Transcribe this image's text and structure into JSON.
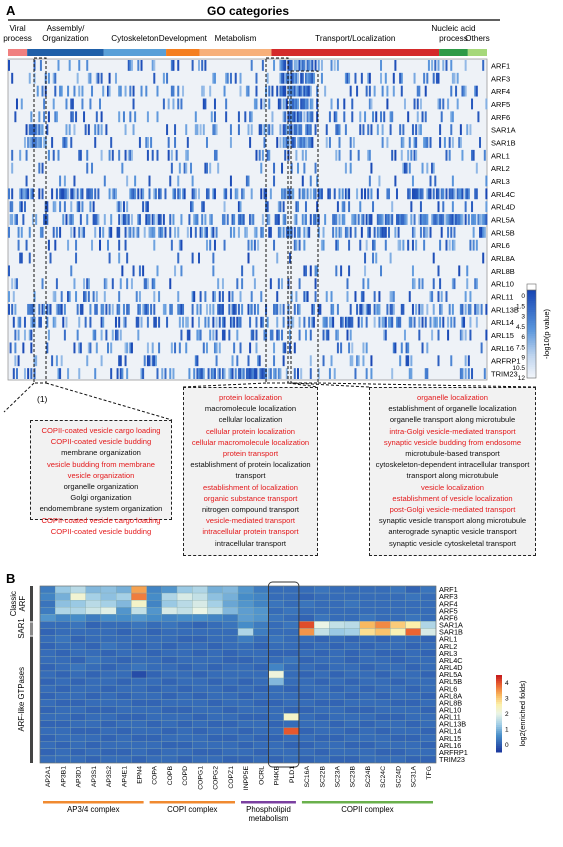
{
  "panelA": {
    "letter": "A",
    "title": "GO categories",
    "categories": [
      {
        "label": "Viral\nprocess",
        "color": "#f08080",
        "start": 0,
        "end": 4
      },
      {
        "label": "Assembly/\nOrganization",
        "color": "#1f5fa8",
        "start": 4,
        "end": 20
      },
      {
        "label": "Cytoskeleton",
        "color": "#5aa0d8",
        "start": 20,
        "end": 33
      },
      {
        "label": "Development",
        "color": "#f57f20",
        "start": 33,
        "end": 40
      },
      {
        "label": "Metabolism",
        "color": "#f7b07a",
        "start": 40,
        "end": 55
      },
      {
        "label": "Transport/Localization",
        "color": "#d42a2a",
        "start": 55,
        "end": 90
      },
      {
        "label": "Nucleic acid\nprocess",
        "color": "#2e9a46",
        "start": 90,
        "end": 96
      },
      {
        "label": "Others",
        "color": "#a6d87a",
        "start": 96,
        "end": 100
      }
    ],
    "rows": [
      "ARF1",
      "ARF3",
      "ARF4",
      "ARF5",
      "ARF6",
      "SAR1A",
      "SAR1B",
      "ARL1",
      "ARL2",
      "ARL3",
      "ARL4C",
      "ARL4D",
      "ARL5A",
      "ARL5B",
      "ARL6",
      "ARL8A",
      "ARL8B",
      "ARL10",
      "ARL11",
      "ARL13B",
      "ARL14",
      "ARL15",
      "ARL16",
      "ARFRP1",
      "TRIM23"
    ],
    "colorbar": {
      "label": "-log10(p value)",
      "ticks": [
        "0",
        "1.5",
        "3",
        "4.5",
        "6",
        "7.5",
        "9",
        "10.5",
        "12"
      ]
    },
    "boxes": [
      {
        "number": "(1)",
        "terms": [
          {
            "text": "COPII-coated vesicle cargo loading",
            "color": "red"
          },
          {
            "text": "COPII-coated vesicle budding",
            "color": "red"
          },
          {
            "text": "membrane organization",
            "color": "black"
          },
          {
            "text": "vesicle budding from membrane",
            "color": "red"
          },
          {
            "text": "vesicle organization",
            "color": "red"
          },
          {
            "text": "organelle organization",
            "color": "black"
          },
          {
            "text": "Golgi organization",
            "color": "black"
          },
          {
            "text": "endomembrane system organization",
            "color": "black"
          },
          {
            "text": "COPII-coated vesicle cargo loading",
            "color": "red"
          },
          {
            "text": "COPII-coated vesicle budding",
            "color": "red"
          }
        ]
      },
      {
        "number": "(2)",
        "terms": [
          {
            "text": "protein localization",
            "color": "red"
          },
          {
            "text": "macromolecule localization",
            "color": "black"
          },
          {
            "text": "cellular localization",
            "color": "black"
          },
          {
            "text": "cellular protein localization",
            "color": "red"
          },
          {
            "text": "cellular macromolecule localization",
            "color": "red"
          },
          {
            "text": "protein transport",
            "color": "red"
          },
          {
            "text": "establishment of protein localization",
            "color": "black"
          },
          {
            "text": "transport",
            "color": "black"
          },
          {
            "text": "establishment of localization",
            "color": "red"
          },
          {
            "text": "organic substance transport",
            "color": "red"
          },
          {
            "text": "nitrogen compound transport",
            "color": "black"
          },
          {
            "text": "vesicle-mediated transport",
            "color": "red"
          },
          {
            "text": "intracellular protein transport",
            "color": "red"
          },
          {
            "text": "intracellular transport",
            "color": "black"
          }
        ]
      },
      {
        "number": "(3)",
        "terms": [
          {
            "text": "organelle localization",
            "color": "red"
          },
          {
            "text": "establishment of organelle localization",
            "color": "black"
          },
          {
            "text": "organelle transport along microtubule",
            "color": "black"
          },
          {
            "text": "intra-Golgi vesicle-mediated transport",
            "color": "red"
          },
          {
            "text": "synaptic vesicle budding from endosome",
            "color": "red"
          },
          {
            "text": "microtubule-based transport",
            "color": "black"
          },
          {
            "text": "cytoskeleton-dependent intracellular transport",
            "color": "black"
          },
          {
            "text": "transport along microtubule",
            "color": "black"
          },
          {
            "text": "vesicle localization",
            "color": "red"
          },
          {
            "text": "establishment of vesicle localization",
            "color": "red"
          },
          {
            "text": "post-Golgi vesicle-mediated transport",
            "color": "red"
          },
          {
            "text": "synaptic vesicle transport along microtubule",
            "color": "black"
          },
          {
            "text": "anterograde synaptic vesicle transport",
            "color": "black"
          },
          {
            "text": "synaptic vesicle cytoskeletal transport",
            "color": "black"
          }
        ]
      }
    ]
  },
  "panelB": {
    "letter": "B",
    "group_labels": {
      "classic": "Classic\nARF",
      "sar1": "SAR1",
      "arl": "ARF-like  GTPases"
    },
    "colorbar": {
      "label": "log2(enriched folds)",
      "ticks": [
        "0",
        "1",
        "2",
        "3",
        "4"
      ]
    },
    "complexes": [
      {
        "label": "AP3/4 complex",
        "color": "#f08a30",
        "start": 0,
        "end": 6
      },
      {
        "label": "COPI complex",
        "color": "#f08a30",
        "start": 6,
        "end": 13
      },
      {
        "label": "Phospholipid\nmetabolism",
        "color": "#7a3fa0",
        "start": 13,
        "end": 15
      },
      {
        "label": "COPII complex",
        "color": "#6ab04c",
        "start": 15,
        "end": 25
      }
    ]
  },
  "chart_data": [
    {
      "type": "heatmap",
      "title": "GO categories",
      "y": [
        "ARF1",
        "ARF3",
        "ARF4",
        "ARF5",
        "ARF6",
        "SAR1A",
        "SAR1B",
        "ARL1",
        "ARL2",
        "ARL3",
        "ARL4C",
        "ARL4D",
        "ARL5A",
        "ARL5B",
        "ARL6",
        "ARL8A",
        "ARL8B",
        "ARL10",
        "ARL11",
        "ARL13B",
        "ARL14",
        "ARL15",
        "ARL16",
        "ARFRP1",
        "TRIM23"
      ],
      "x_categories": [
        "Viral process",
        "Assembly/Organization",
        "Cytoskeleton",
        "Development",
        "Metabolism",
        "Transport/Localization",
        "Nucleic acid process",
        "Others"
      ],
      "colorbar_label": "-log10(p value)",
      "zlim": [
        0,
        12
      ]
    },
    {
      "type": "heatmap",
      "x": [
        "AP2A1",
        "AP3B1",
        "AP3D1",
        "AP3S1",
        "AP3S2",
        "AP4E1",
        "EPN4",
        "COPA",
        "COPB",
        "COPD",
        "COPG1",
        "COPG2",
        "COPZ1",
        "INPP5E",
        "OCRL",
        "PI4KB",
        "PLD1",
        "SC16A",
        "SC22B",
        "SC23A",
        "SC23B",
        "SC24B",
        "SC24C",
        "SC24D",
        "SC31A",
        "TFG"
      ],
      "y": [
        "ARF1",
        "ARF3",
        "ARF4",
        "ARF5",
        "ARF6",
        "SAR1A",
        "SAR1B",
        "ARL1",
        "ARL2",
        "ARL3",
        "ARL4C",
        "ARL4D",
        "ARL5A",
        "ARL5B",
        "ARL6",
        "ARL8A",
        "ARL8B",
        "ARL10",
        "ARL11",
        "ARL13B",
        "ARL14",
        "ARL15",
        "ARL16",
        "ARFRP1",
        "TRIM23"
      ],
      "colorbar_label": "log2(enriched folds)",
      "zlim": [
        -0.5,
        4.5
      ],
      "values": [
        [
          0.3,
          1.2,
          1.5,
          1.0,
          1.1,
          0.9,
          3.4,
          0.4,
          0.6,
          1.2,
          1.4,
          0.9,
          1.0,
          0.6,
          0.3,
          0.1,
          0.1,
          0.1,
          0.2,
          0.1,
          0.1,
          0.1,
          0.1,
          0.2,
          0.0,
          0.2
        ],
        [
          0.4,
          0.9,
          2.2,
          1.3,
          1.1,
          1.3,
          3.7,
          0.5,
          1.4,
          1.8,
          1.6,
          1.1,
          0.9,
          0.5,
          0.4,
          0.1,
          0.1,
          0.0,
          0.1,
          0.1,
          0.1,
          0.1,
          0.1,
          0.1,
          0.2,
          0.1
        ],
        [
          0.2,
          1.1,
          1.2,
          1.5,
          1.3,
          1.0,
          2.3,
          0.4,
          1.2,
          1.5,
          1.8,
          1.3,
          0.8,
          0.6,
          0.4,
          0.2,
          0.1,
          0.2,
          0.1,
          0.1,
          0.2,
          0.1,
          0.1,
          0.1,
          0.1,
          0.1
        ],
        [
          0.3,
          1.4,
          1.4,
          1.7,
          1.9,
          0.6,
          1.6,
          0.6,
          1.8,
          1.6,
          2.0,
          1.6,
          1.0,
          0.7,
          0.6,
          0.1,
          0.2,
          0.1,
          0.1,
          0.1,
          0.1,
          0.1,
          0.1,
          0.1,
          0.1,
          0.1
        ],
        [
          0.6,
          0.4,
          0.5,
          0.3,
          0.5,
          0.5,
          0.6,
          0.5,
          0.4,
          0.5,
          0.5,
          0.4,
          0.3,
          0.7,
          0.6,
          0.2,
          0.1,
          0.0,
          0.2,
          0.1,
          0.1,
          0.2,
          0.1,
          0.1,
          0.2,
          0.1
        ],
        [
          0.1,
          0.1,
          0.2,
          0.0,
          0.1,
          0.1,
          0.2,
          0.1,
          0.2,
          0.1,
          0.0,
          0.1,
          0.2,
          0.5,
          0.3,
          0.1,
          0.2,
          4.1,
          2.0,
          1.6,
          1.5,
          3.2,
          3.6,
          3.0,
          2.6,
          1.4
        ],
        [
          0.0,
          0.1,
          0.1,
          0.1,
          0.1,
          0.0,
          0.1,
          0.0,
          0.1,
          0.1,
          0.1,
          0.1,
          0.1,
          1.4,
          0.3,
          0.1,
          0.1,
          3.5,
          1.6,
          1.2,
          1.3,
          2.8,
          3.1,
          2.5,
          3.9,
          1.8
        ],
        [
          0.1,
          0.2,
          0.0,
          0.1,
          0.1,
          0.1,
          0.1,
          0.1,
          0.1,
          0.0,
          0.0,
          0.1,
          0.1,
          0.3,
          0.1,
          0.2,
          0.1,
          0.1,
          0.0,
          0.1,
          0.0,
          0.1,
          0.0,
          0.1,
          0.1,
          0.0
        ],
        [
          0.0,
          0.1,
          0.1,
          0.0,
          0.2,
          0.1,
          0.0,
          0.1,
          0.0,
          0.1,
          0.1,
          0.0,
          0.1,
          0.1,
          0.0,
          0.1,
          0.1,
          0.0,
          0.1,
          0.0,
          0.1,
          0.0,
          0.1,
          0.1,
          0.0,
          0.1
        ],
        [
          0.1,
          0.0,
          0.1,
          0.1,
          0.0,
          0.1,
          0.1,
          0.0,
          0.1,
          0.1,
          0.0,
          0.1,
          0.0,
          0.1,
          0.1,
          0.0,
          0.0,
          0.1,
          0.0,
          0.1,
          0.0,
          0.1,
          0.0,
          0.0,
          0.1,
          0.0
        ],
        [
          0.1,
          0.1,
          0.0,
          0.2,
          0.1,
          0.0,
          0.1,
          0.1,
          0.0,
          0.1,
          0.1,
          0.1,
          0.0,
          0.0,
          0.1,
          0.1,
          0.2,
          0.0,
          0.1,
          0.1,
          0.0,
          0.1,
          0.1,
          0.0,
          0.1,
          0.1
        ],
        [
          0.0,
          0.1,
          0.2,
          0.1,
          0.0,
          0.1,
          0.2,
          0.1,
          0.1,
          0.0,
          0.1,
          0.0,
          0.1,
          0.1,
          0.0,
          0.4,
          0.1,
          0.1,
          0.0,
          0.1,
          0.1,
          0.0,
          0.1,
          0.1,
          0.0,
          0.1
        ],
        [
          0.1,
          0.0,
          0.1,
          0.0,
          0.1,
          0.1,
          -0.3,
          0.0,
          0.1,
          0.1,
          0.0,
          0.1,
          0.1,
          0.1,
          0.1,
          2.1,
          0.1,
          0.0,
          0.1,
          0.0,
          0.1,
          0.1,
          0.0,
          0.1,
          0.1,
          0.0
        ],
        [
          0.0,
          0.1,
          0.0,
          0.1,
          0.1,
          0.0,
          0.1,
          0.1,
          0.0,
          0.1,
          0.1,
          0.0,
          0.1,
          0.0,
          0.1,
          1.0,
          0.1,
          0.1,
          0.0,
          0.1,
          0.0,
          0.1,
          0.1,
          0.0,
          0.1,
          0.1
        ],
        [
          0.1,
          0.0,
          0.1,
          0.1,
          0.0,
          0.1,
          0.1,
          0.0,
          0.1,
          0.0,
          0.1,
          0.1,
          0.0,
          0.1,
          0.0,
          0.1,
          0.0,
          0.1,
          0.1,
          0.0,
          0.1,
          0.0,
          0.1,
          0.1,
          0.0,
          0.1
        ],
        [
          0.0,
          0.1,
          0.1,
          0.0,
          0.1,
          0.0,
          0.1,
          0.1,
          0.0,
          0.1,
          0.0,
          0.1,
          0.1,
          0.0,
          0.1,
          0.1,
          0.1,
          0.0,
          0.1,
          0.1,
          0.0,
          0.1,
          0.0,
          0.1,
          0.1,
          0.0
        ],
        [
          0.1,
          0.0,
          0.0,
          0.1,
          0.1,
          0.1,
          0.0,
          0.0,
          0.1,
          0.1,
          0.1,
          0.0,
          0.1,
          0.1,
          0.0,
          0.0,
          0.1,
          0.1,
          0.0,
          0.0,
          0.1,
          0.1,
          0.1,
          0.0,
          0.0,
          0.1
        ],
        [
          0.0,
          0.1,
          0.1,
          0.0,
          0.0,
          0.1,
          0.1,
          0.1,
          0.0,
          0.0,
          0.1,
          0.1,
          0.0,
          0.1,
          0.1,
          0.1,
          0.0,
          0.0,
          0.1,
          0.1,
          0.0,
          0.0,
          0.1,
          0.1,
          0.1,
          0.0
        ],
        [
          0.1,
          0.1,
          0.0,
          0.1,
          0.1,
          0.0,
          0.0,
          0.1,
          0.1,
          0.1,
          0.0,
          0.1,
          0.1,
          0.0,
          0.0,
          0.1,
          2.3,
          0.1,
          0.0,
          0.1,
          0.1,
          0.1,
          0.0,
          0.0,
          0.1,
          0.1
        ],
        [
          0.0,
          0.0,
          0.1,
          0.1,
          0.0,
          0.1,
          0.1,
          0.0,
          0.1,
          0.0,
          0.1,
          0.0,
          0.0,
          0.1,
          0.1,
          0.0,
          0.1,
          0.1,
          0.1,
          0.0,
          0.1,
          0.0,
          0.1,
          0.1,
          0.0,
          0.1
        ],
        [
          0.1,
          0.1,
          0.0,
          0.0,
          0.1,
          0.0,
          0.1,
          0.1,
          0.0,
          0.1,
          0.0,
          0.1,
          0.1,
          0.0,
          0.1,
          0.1,
          4.0,
          0.0,
          0.1,
          0.1,
          0.0,
          0.1,
          0.0,
          0.1,
          0.1,
          0.0
        ],
        [
          0.0,
          0.1,
          0.1,
          0.1,
          0.0,
          0.1,
          0.0,
          0.0,
          0.1,
          0.1,
          0.1,
          0.0,
          0.0,
          0.1,
          0.0,
          0.0,
          0.1,
          0.1,
          0.0,
          0.0,
          0.1,
          0.1,
          0.1,
          0.0,
          0.0,
          0.1
        ],
        [
          0.1,
          0.0,
          0.1,
          0.0,
          0.1,
          0.1,
          0.1,
          0.1,
          0.0,
          0.0,
          0.1,
          0.1,
          0.1,
          0.0,
          0.1,
          0.1,
          0.0,
          0.0,
          0.1,
          0.1,
          0.0,
          0.0,
          0.1,
          0.1,
          0.1,
          0.0
        ],
        [
          0.0,
          0.1,
          0.0,
          0.1,
          0.0,
          0.0,
          0.1,
          0.0,
          0.1,
          0.1,
          0.0,
          0.0,
          0.1,
          0.1,
          0.0,
          0.1,
          0.1,
          0.1,
          0.0,
          0.1,
          0.1,
          0.1,
          0.0,
          0.0,
          0.1,
          0.1
        ],
        [
          0.1,
          0.1,
          0.1,
          0.0,
          0.1,
          0.1,
          0.0,
          0.1,
          0.1,
          0.0,
          0.1,
          0.1,
          0.0,
          0.0,
          0.1,
          0.0,
          0.1,
          0.0,
          0.1,
          0.0,
          0.0,
          0.1,
          0.1,
          0.1,
          0.0,
          0.0
        ]
      ]
    }
  ]
}
